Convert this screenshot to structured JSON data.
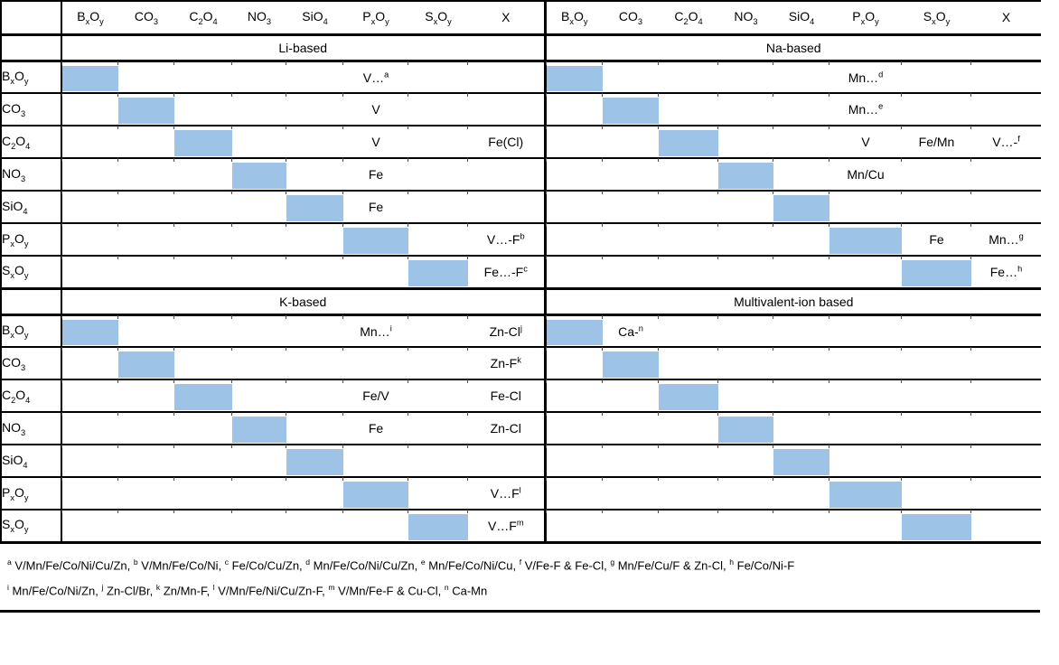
{
  "table": {
    "highlight_color": "#9DC3E6",
    "column_headers": [
      "B_x_O_y_",
      "CO_3_",
      "C_2_O_4_",
      "NO_3_",
      "SiO_4_",
      "P_x_O_y_",
      "S_x_O_y_",
      "X"
    ],
    "row_headers": [
      "B_x_O_y_",
      "CO_3_",
      "C_2_O_4_",
      "NO_3_",
      "SiO_4_",
      "P_x_O_y_",
      "S_x_O_y_"
    ],
    "sections": [
      {
        "title": "Li-based",
        "rows": [
          [
            "",
            "",
            "",
            "",
            "",
            "V…^a^",
            "",
            ""
          ],
          [
            "",
            "",
            "",
            "",
            "",
            "V",
            "",
            ""
          ],
          [
            "",
            "",
            "",
            "",
            "",
            "V",
            "",
            "Fe(Cl)"
          ],
          [
            "",
            "",
            "",
            "",
            "",
            "Fe",
            "",
            ""
          ],
          [
            "",
            "",
            "",
            "",
            "",
            "Fe",
            "",
            ""
          ],
          [
            "",
            "",
            "",
            "",
            "",
            "",
            "",
            "V…-F^b^"
          ],
          [
            "",
            "",
            "",
            "",
            "",
            "",
            "",
            "Fe…-F^c^"
          ]
        ]
      },
      {
        "title": "Na-based",
        "rows": [
          [
            "",
            "",
            "",
            "",
            "",
            "Mn…^d^",
            "",
            ""
          ],
          [
            "",
            "",
            "",
            "",
            "",
            "Mn…^e^",
            "",
            ""
          ],
          [
            "",
            "",
            "",
            "",
            "",
            "V",
            "Fe/Mn",
            "V…-^f^"
          ],
          [
            "",
            "",
            "",
            "",
            "",
            "Mn/Cu",
            "",
            ""
          ],
          [
            "",
            "",
            "",
            "",
            "",
            "",
            "",
            ""
          ],
          [
            "",
            "",
            "",
            "",
            "",
            "",
            "Fe",
            "Mn…^g^"
          ],
          [
            "",
            "",
            "",
            "",
            "",
            "",
            "",
            "Fe…^h^"
          ]
        ]
      },
      {
        "title": "K-based",
        "rows": [
          [
            "",
            "",
            "",
            "",
            "",
            "Mn…^i^",
            "",
            "Zn-Cl^j^"
          ],
          [
            "",
            "",
            "",
            "",
            "",
            "",
            "",
            "Zn-F^k^"
          ],
          [
            "",
            "",
            "",
            "",
            "",
            "Fe/V",
            "",
            "Fe-Cl"
          ],
          [
            "",
            "",
            "",
            "",
            "",
            "Fe",
            "",
            "Zn-Cl"
          ],
          [
            "",
            "",
            "",
            "",
            "",
            "",
            "",
            ""
          ],
          [
            "",
            "",
            "",
            "",
            "",
            "",
            "",
            "V…F^l^"
          ],
          [
            "",
            "",
            "",
            "",
            "",
            "",
            "",
            "V…F^m^"
          ]
        ]
      },
      {
        "title": "Multivalent-ion based",
        "rows": [
          [
            "",
            "Ca-^n^",
            "",
            "",
            "",
            "",
            "",
            ""
          ],
          [
            "",
            "",
            "",
            "",
            "",
            "",
            "",
            ""
          ],
          [
            "",
            "",
            "",
            "",
            "",
            "",
            "",
            ""
          ],
          [
            "",
            "",
            "",
            "",
            "",
            "",
            "",
            ""
          ],
          [
            "",
            "",
            "",
            "",
            "",
            "",
            "",
            ""
          ],
          [
            "",
            "",
            "",
            "",
            "",
            "",
            "",
            ""
          ],
          [
            "",
            "",
            "",
            "",
            "",
            "",
            "",
            ""
          ]
        ]
      }
    ]
  },
  "footnotes": [
    "^a^ V/Mn/Fe/Co/Ni/Cu/Zn, ^b^ V/Mn/Fe/Co/Ni, ^c^ Fe/Co/Cu/Zn, ^d^ Mn/Fe/Co/Ni/Cu/Zn, ^e^ Mn/Fe/Co/Ni/Cu, ^f^ V/Fe-F & Fe-Cl, ^g^ Mn/Fe/Cu/F & Zn-Cl, ^h^ Fe/Co/Ni-F",
    "^i^ Mn/Fe/Co/Ni/Zn, ^j^ Zn-Cl/Br, ^k^ Zn/Mn-F, ^l^ V/Mn/Fe/Ni/Cu/Zn-F, ^m^ V/Mn/Fe-F & Cu-Cl, ^n^ Ca-Mn"
  ]
}
